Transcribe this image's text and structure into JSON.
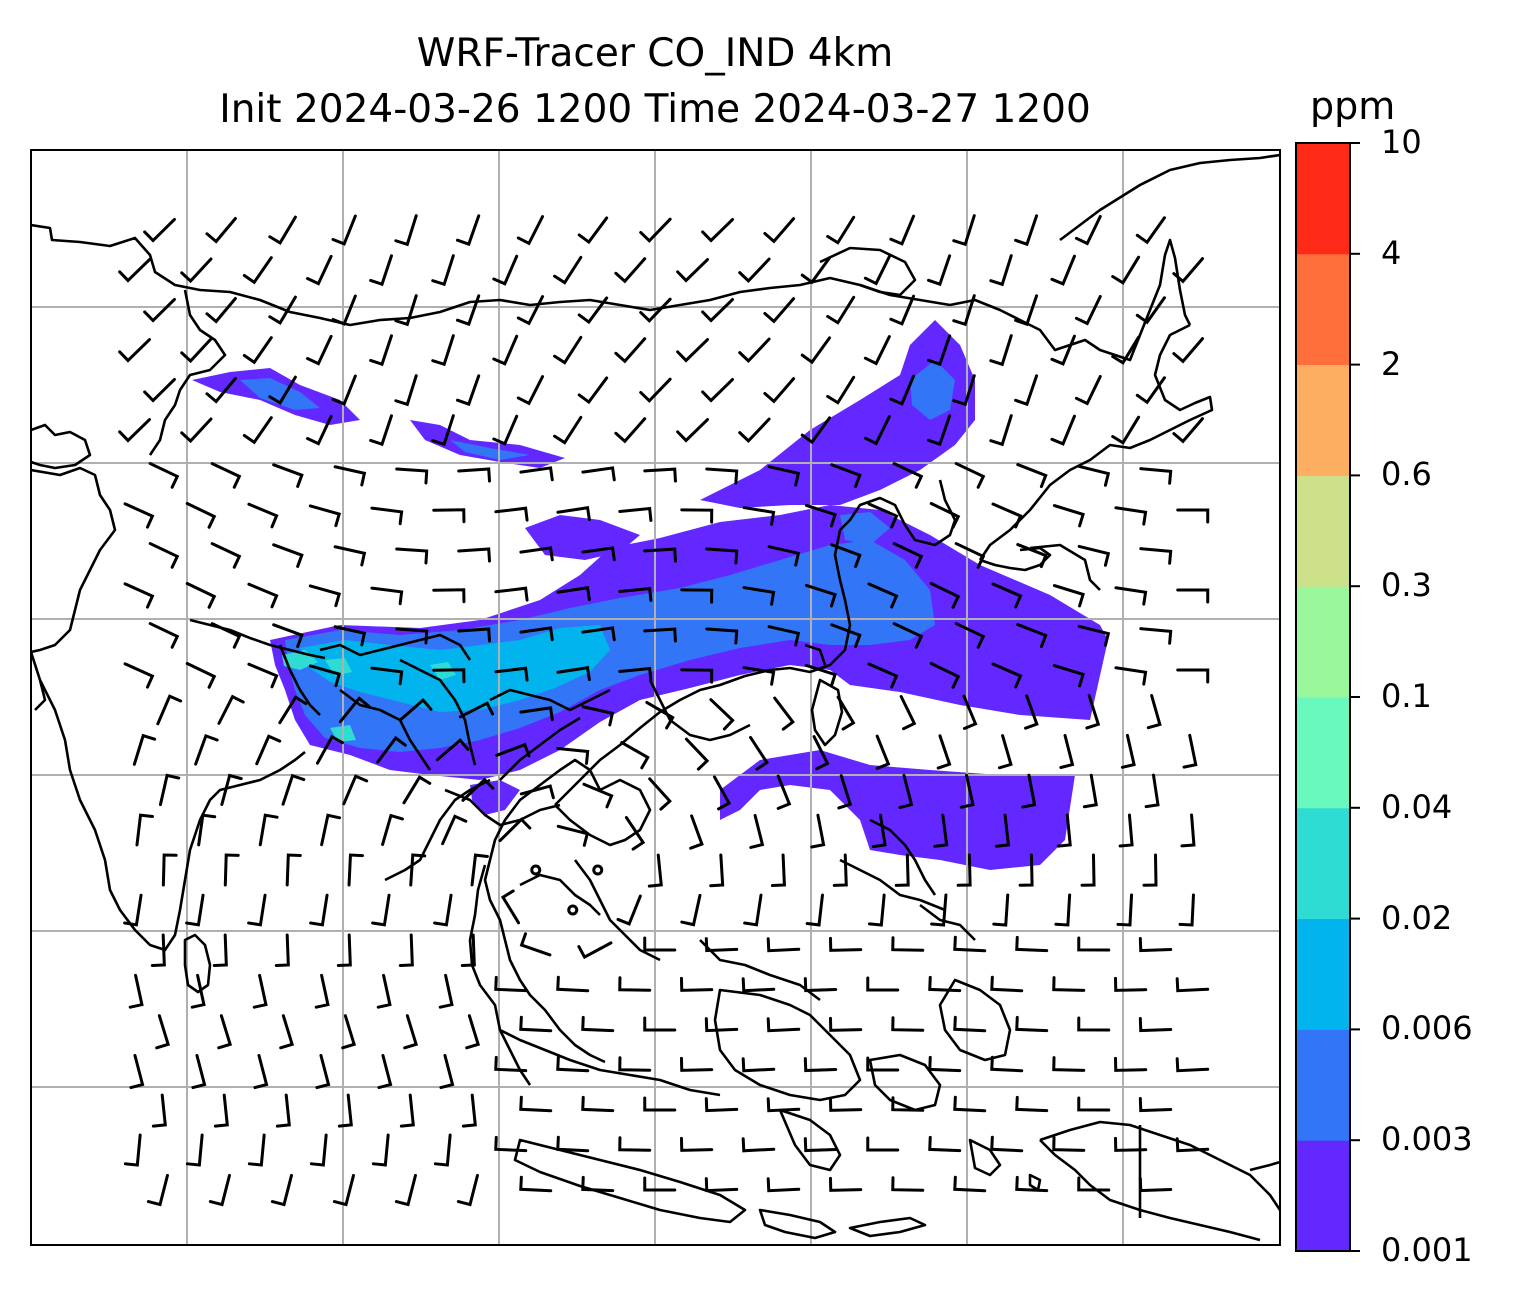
{
  "title": {
    "line1": "WRF-Tracer CO_IND 4km",
    "line2": "Init 2024-03-26 1200 Time 2024-03-27 1200"
  },
  "colorbar": {
    "unit": "ppm",
    "levels": [
      "0.001",
      "0.003",
      "0.006",
      "0.02",
      "0.04",
      "0.1",
      "0.3",
      "0.6",
      "2",
      "4",
      "10"
    ],
    "colors": [
      "#6228ff",
      "#3275f6",
      "#02b4ed",
      "#2edcd4",
      "#69f9bf",
      "#9bf79c",
      "#cde18a",
      "#feae61",
      "#ff6f3c",
      "#ff2a17"
    ]
  },
  "map": {
    "graticule": "on",
    "wind_barbs": "on",
    "coastlines": "on"
  }
}
